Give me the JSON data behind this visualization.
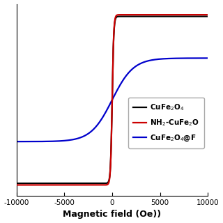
{
  "xlabel": "Magnetic field (Oe))",
  "xlim": [
    -10000,
    10000
  ],
  "ylim": [
    -1.15,
    1.15
  ],
  "xticks": [
    -10000,
    -5000,
    0,
    5000,
    10000
  ],
  "curves": [
    {
      "label": "CuFe$_2$O$_4$",
      "color": "#000000",
      "saturation": 1.0,
      "tanh_scale": 0.006,
      "linewidth": 1.6,
      "zorder": 3
    },
    {
      "label": "NH$_2$-CuFe$_2$O",
      "color": "#cc0000",
      "saturation": 1.02,
      "tanh_scale": 0.006,
      "linewidth": 1.6,
      "zorder": 4
    },
    {
      "label": "CuFe$_2$O$_4$@F",
      "color": "#0000cc",
      "saturation": 0.5,
      "tanh_scale": 0.00045,
      "linewidth": 1.6,
      "zorder": 2
    }
  ],
  "legend_fontsize": 7.5,
  "xlabel_fontsize": 9,
  "tick_fontsize": 7.5,
  "background_color": "#ffffff",
  "figsize": [
    3.2,
    3.2
  ],
  "dpi": 100
}
